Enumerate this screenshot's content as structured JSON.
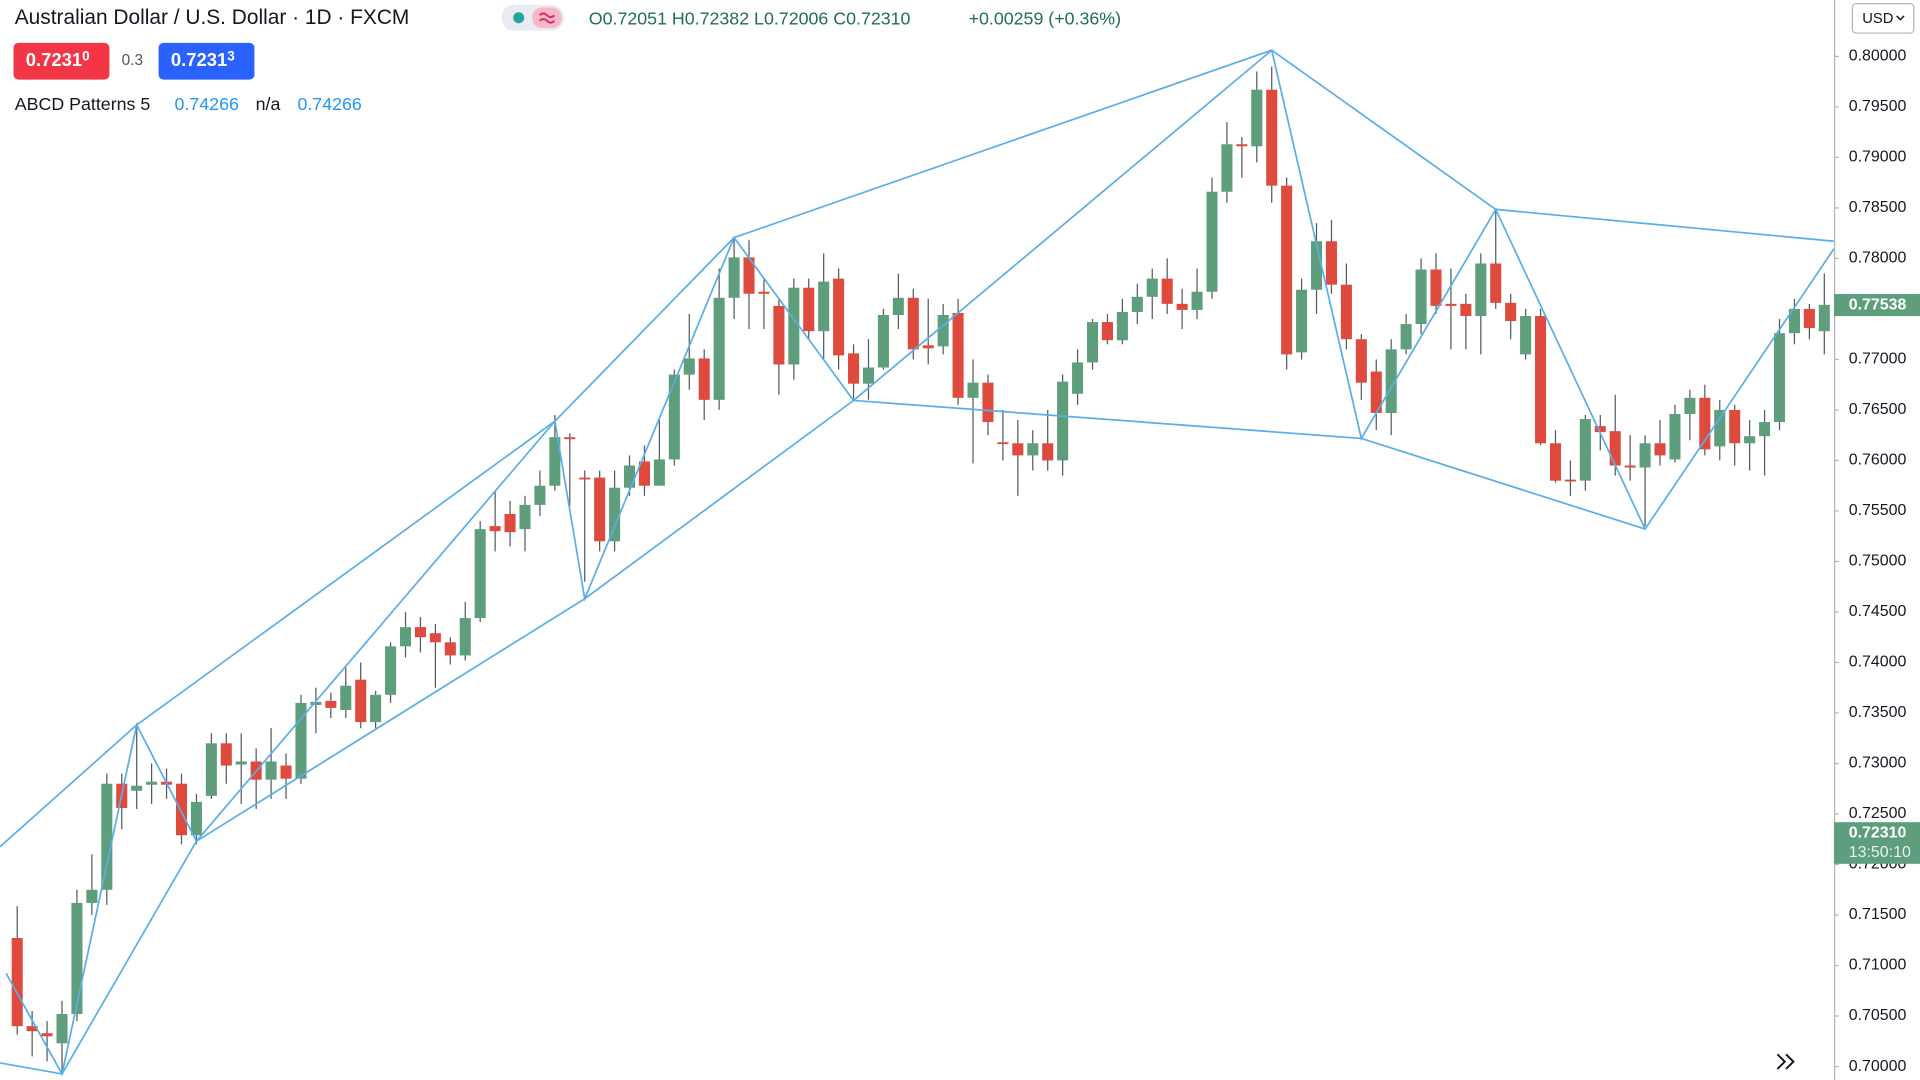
{
  "header": {
    "symbol": "Australian Dollar / U.S. Dollar · 1D · FXCM",
    "ohlc": "O0.72051 H0.72382 L0.72006 C0.72310",
    "change": "+0.00259 (+0.36%)",
    "sell_price": "0.7231",
    "sell_price_sup": "0",
    "spread": "0.3",
    "buy_price": "0.7231",
    "buy_price_sup": "3",
    "indicator": {
      "name": "ABCD Patterns 5",
      "values": [
        "0.74266",
        "n/a",
        "0.74266"
      ]
    },
    "currency": "USD"
  },
  "chart_data": {
    "type": "candlestick",
    "up_color": "#5e9e7c",
    "down_color": "#de4b3e",
    "wick_color": "#55585f",
    "pattern_color": "#5aaee8",
    "open": [
      0.71273,
      0.704,
      0.7033,
      0.7023,
      0.7052,
      0.7162,
      0.7175,
      0.728,
      0.7273,
      0.7279,
      0.7282,
      0.728,
      0.7229,
      0.7268,
      0.732,
      0.7299,
      0.7302,
      0.7284,
      0.7298,
      0.7285,
      0.7358,
      0.7362,
      0.7353,
      0.7383,
      0.7341,
      0.7368,
      0.7416,
      0.7435,
      0.7429,
      0.742,
      0.7407,
      0.7444,
      0.7535,
      0.7547,
      0.7532,
      0.7556,
      0.7575,
      0.7623,
      0.7583,
      0.7583,
      0.752,
      0.7573,
      0.7599,
      0.7575,
      0.7601,
      0.7685,
      0.7701,
      0.766,
      0.7761,
      0.7801,
      0.7767,
      0.7753,
      0.7695,
      0.7771,
      0.7728,
      0.778,
      0.7706,
      0.7676,
      0.7692,
      0.7744,
      0.7761,
      0.7714,
      0.7713,
      0.7746,
      0.7662,
      0.7677,
      0.7618,
      0.7617,
      0.7605,
      0.7617,
      0.76,
      0.7666,
      0.7697,
      0.7737,
      0.7719,
      0.7747,
      0.7762,
      0.778,
      0.7755,
      0.7749,
      0.7767,
      0.7866,
      0.7913,
      0.7911,
      0.7967,
      0.7872,
      0.7707,
      0.7769,
      0.7817,
      0.7774,
      0.772,
      0.7688,
      0.7647,
      0.771,
      0.7735,
      0.7789,
      0.7755,
      0.7755,
      0.7743,
      0.7795,
      0.7756,
      0.7705,
      0.7743,
      0.7617,
      0.7581,
      0.758,
      0.7634,
      0.7629,
      0.7595,
      0.7593,
      0.7617,
      0.7601,
      0.7646,
      0.7662,
      0.7614,
      0.765,
      0.7617,
      0.7624,
      0.7638,
      0.7726,
      0.775,
      0.7728
    ],
    "high": [
      0.71588,
      0.7055,
      0.7045,
      0.7065,
      0.7175,
      0.721,
      0.729,
      0.729,
      0.734,
      0.73,
      0.7295,
      0.729,
      0.727,
      0.733,
      0.733,
      0.733,
      0.7315,
      0.7335,
      0.731,
      0.7368,
      0.7375,
      0.737,
      0.7395,
      0.74,
      0.7372,
      0.742,
      0.745,
      0.7445,
      0.7438,
      0.7425,
      0.746,
      0.754,
      0.757,
      0.756,
      0.7565,
      0.759,
      0.7645,
      0.7627,
      0.759,
      0.759,
      0.759,
      0.7605,
      0.7615,
      0.764,
      0.769,
      0.7745,
      0.771,
      0.779,
      0.782,
      0.7818,
      0.778,
      0.776,
      0.778,
      0.778,
      0.7805,
      0.779,
      0.7715,
      0.772,
      0.775,
      0.7785,
      0.777,
      0.776,
      0.7755,
      0.776,
      0.77,
      0.7685,
      0.765,
      0.764,
      0.763,
      0.765,
      0.7685,
      0.771,
      0.774,
      0.7745,
      0.776,
      0.7775,
      0.779,
      0.78,
      0.777,
      0.779,
      0.788,
      0.7935,
      0.792,
      0.7985,
      0.799,
      0.788,
      0.778,
      0.7835,
      0.7838,
      0.7795,
      0.7725,
      0.77,
      0.772,
      0.7745,
      0.78,
      0.7805,
      0.779,
      0.7765,
      0.7805,
      0.785,
      0.7765,
      0.775,
      0.775,
      0.763,
      0.76,
      0.7645,
      0.7645,
      0.7665,
      0.7625,
      0.7625,
      0.764,
      0.7655,
      0.767,
      0.7675,
      0.766,
      0.7655,
      0.764,
      0.765,
      0.774,
      0.776,
      0.7755,
      0.7785
    ],
    "low": [
      0.70316,
      0.701,
      0.7005,
      0.69927,
      0.7045,
      0.715,
      0.716,
      0.7235,
      0.7255,
      0.726,
      0.7265,
      0.722,
      0.722,
      0.7265,
      0.728,
      0.726,
      0.7255,
      0.7265,
      0.7265,
      0.728,
      0.733,
      0.7345,
      0.7345,
      0.7335,
      0.7335,
      0.736,
      0.7405,
      0.741,
      0.7375,
      0.7398,
      0.7402,
      0.744,
      0.751,
      0.7515,
      0.751,
      0.7545,
      0.757,
      0.7555,
      0.748,
      0.751,
      0.751,
      0.7565,
      0.7565,
      0.7575,
      0.7595,
      0.767,
      0.764,
      0.765,
      0.774,
      0.773,
      0.773,
      0.7665,
      0.768,
      0.772,
      0.77,
      0.769,
      0.766,
      0.766,
      0.769,
      0.773,
      0.77,
      0.7695,
      0.7705,
      0.7655,
      0.7597,
      0.7625,
      0.76,
      0.7565,
      0.759,
      0.759,
      0.7585,
      0.7655,
      0.769,
      0.7715,
      0.7715,
      0.7735,
      0.774,
      0.7745,
      0.773,
      0.774,
      0.776,
      0.7855,
      0.788,
      0.7895,
      0.7855,
      0.769,
      0.77,
      0.7745,
      0.7765,
      0.771,
      0.766,
      0.763,
      0.7625,
      0.7705,
      0.7725,
      0.7745,
      0.771,
      0.771,
      0.7705,
      0.775,
      0.772,
      0.77,
      0.7615,
      0.7578,
      0.7565,
      0.757,
      0.761,
      0.7585,
      0.758,
      0.7535,
      0.7595,
      0.7598,
      0.762,
      0.7605,
      0.76,
      0.7595,
      0.759,
      0.7585,
      0.763,
      0.7715,
      0.772,
      0.7705
    ],
    "close": [
      0.704,
      0.7035,
      0.703,
      0.7052,
      0.7162,
      0.7175,
      0.728,
      0.7256,
      0.7278,
      0.7282,
      0.7279,
      0.7229,
      0.7262,
      0.732,
      0.7298,
      0.7302,
      0.7284,
      0.7302,
      0.7285,
      0.736,
      0.7361,
      0.7355,
      0.7377,
      0.7341,
      0.7368,
      0.7416,
      0.7435,
      0.7425,
      0.742,
      0.7407,
      0.7444,
      0.7532,
      0.753,
      0.7529,
      0.7556,
      0.7575,
      0.7623,
      0.7621,
      0.7582,
      0.752,
      0.7573,
      0.7595,
      0.7575,
      0.7601,
      0.7685,
      0.7701,
      0.766,
      0.7761,
      0.7801,
      0.7765,
      0.7765,
      0.7695,
      0.7771,
      0.7728,
      0.7777,
      0.7704,
      0.7676,
      0.7692,
      0.7744,
      0.7761,
      0.771,
      0.7711,
      0.7744,
      0.7662,
      0.7677,
      0.7638,
      0.7617,
      0.7605,
      0.7617,
      0.76,
      0.7678,
      0.7697,
      0.7737,
      0.7719,
      0.7747,
      0.7762,
      0.778,
      0.7755,
      0.7749,
      0.7767,
      0.7866,
      0.7913,
      0.7911,
      0.7967,
      0.7872,
      0.7705,
      0.7769,
      0.7817,
      0.7774,
      0.772,
      0.7677,
      0.7647,
      0.771,
      0.7735,
      0.7789,
      0.7753,
      0.7753,
      0.7743,
      0.7795,
      0.7756,
      0.7738,
      0.7743,
      0.7617,
      0.758,
      0.758,
      0.7641,
      0.7628,
      0.7595,
      0.7593,
      0.7617,
      0.7605,
      0.7646,
      0.7662,
      0.7611,
      0.765,
      0.7617,
      0.7624,
      0.7638,
      0.7726,
      0.775,
      0.7731,
      0.7754
    ],
    "pattern_lines": [
      {
        "x": [
          -1.15,
          8
        ],
        "values": [
          0.72176,
          0.73382
        ]
      },
      {
        "x": [
          8,
          36,
          48,
          84,
          99,
          121.65
        ],
        "values": [
          0.73382,
          0.76388,
          0.78206,
          0.80061,
          0.78485,
          0.7817
        ]
      },
      {
        "x": [
          -0.74,
          3,
          8,
          12,
          36,
          38,
          48,
          56,
          84,
          90,
          99,
          109,
          121.65
        ],
        "values": [
          0.70922,
          0.69927,
          0.73382,
          0.72231,
          0.76388,
          0.74631,
          0.78206,
          0.76594,
          0.80061,
          0.76218,
          0.78485,
          0.75321,
          0.78097
        ]
      },
      {
        "x": [
          -1.15,
          3,
          12,
          38,
          56,
          90,
          109
        ],
        "values": [
          0.70036,
          0.69927,
          0.72231,
          0.74631,
          0.76594,
          0.76218,
          0.75321
        ]
      }
    ],
    "ylim": [
      0.69867,
      0.80558
    ],
    "yticks": [
      {
        "value": 0.7,
        "label": "0.70000"
      },
      {
        "value": 0.705,
        "label": "0.70500"
      },
      {
        "value": 0.71,
        "label": "0.71000"
      },
      {
        "value": 0.715,
        "label": "0.71500"
      },
      {
        "value": 0.72,
        "label": "0.72000"
      },
      {
        "value": 0.725,
        "label": "0.72500"
      },
      {
        "value": 0.73,
        "label": "0.73000"
      },
      {
        "value": 0.735,
        "label": "0.73500"
      },
      {
        "value": 0.74,
        "label": "0.74000"
      },
      {
        "value": 0.745,
        "label": "0.74500"
      },
      {
        "value": 0.75,
        "label": "0.75000"
      },
      {
        "value": 0.755,
        "label": "0.75500"
      },
      {
        "value": 0.76,
        "label": "0.76000"
      },
      {
        "value": 0.765,
        "label": "0.76500"
      },
      {
        "value": 0.77,
        "label": "0.77000"
      },
      {
        "value": 0.775,
        "label": "0.77500"
      },
      {
        "value": 0.78,
        "label": "0.78000"
      },
      {
        "value": 0.785,
        "label": "0.78500"
      },
      {
        "value": 0.79,
        "label": "0.79000"
      },
      {
        "value": 0.795,
        "label": "0.79500"
      },
      {
        "value": 0.8,
        "label": "0.80000"
      }
    ],
    "price_labels": [
      {
        "value": 0.77538,
        "label": "0.77538",
        "color": "#5e9e7c"
      },
      {
        "value": 0.7231,
        "label": "0.72310",
        "color": "#5e9e7c"
      }
    ],
    "current_time": "13:50:10"
  }
}
